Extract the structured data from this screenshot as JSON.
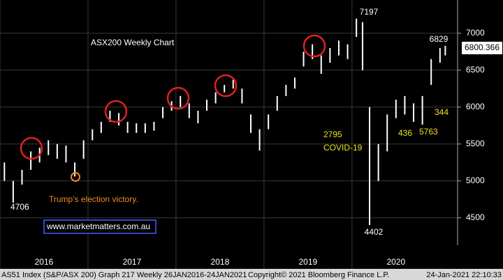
{
  "chart_data": {
    "type": "ohlc",
    "title": "ASX200 Weekly Chart",
    "title_color": "#80e0a0",
    "x": [
      2016.05,
      2016.15,
      2016.25,
      2016.35,
      2016.45,
      2016.55,
      2016.65,
      2016.75,
      2016.85,
      2016.95,
      2017.05,
      2017.15,
      2017.25,
      2017.35,
      2017.45,
      2017.55,
      2017.65,
      2017.75,
      2017.85,
      2017.95,
      2018.05,
      2018.15,
      2018.25,
      2018.35,
      2018.45,
      2018.55,
      2018.65,
      2018.75,
      2018.85,
      2018.95,
      2019.05,
      2019.15,
      2019.25,
      2019.35,
      2019.45,
      2019.55,
      2019.65,
      2019.75,
      2019.85,
      2019.95,
      2020.05,
      2020.12,
      2020.2,
      2020.3,
      2020.4,
      2020.5,
      2020.6,
      2020.7,
      2020.8,
      2020.9,
      2021.0,
      2021.06
    ],
    "high": [
      5250,
      5000,
      5150,
      5400,
      5450,
      5550,
      5500,
      5480,
      5250,
      5550,
      5700,
      5800,
      5950,
      5920,
      5800,
      5780,
      5780,
      5800,
      6000,
      6080,
      6150,
      6050,
      5950,
      6100,
      6200,
      6300,
      6370,
      6250,
      5900,
      5700,
      5900,
      6150,
      6300,
      6400,
      6750,
      6850,
      6700,
      6800,
      6900,
      6850,
      7197,
      7150,
      6000,
      5500,
      5900,
      6100,
      6150,
      6050,
      6150,
      6650,
      6800,
      6829
    ],
    "low": [
      5000,
      4706,
      4950,
      5150,
      5250,
      5350,
      5300,
      5250,
      5060,
      5300,
      5550,
      5650,
      5800,
      5750,
      5650,
      5650,
      5650,
      5680,
      5850,
      5950,
      6000,
      5850,
      5780,
      5950,
      6050,
      6200,
      6250,
      6050,
      5650,
      5410,
      5700,
      5950,
      6150,
      6250,
      6550,
      6650,
      6450,
      6600,
      6700,
      6650,
      6950,
      6500,
      4402,
      5000,
      5400,
      5850,
      5900,
      5800,
      5763,
      6300,
      6600,
      6700
    ],
    "color": "#ffffff",
    "xlim": [
      2016.0,
      2021.2
    ],
    "xticks": [
      {
        "value": 2016,
        "label": "2016"
      },
      {
        "value": 2017,
        "label": "2017"
      },
      {
        "value": 2018,
        "label": "2018"
      },
      {
        "value": 2019,
        "label": "2019"
      },
      {
        "value": 2020,
        "label": "2020"
      }
    ],
    "ylim": [
      4130,
      7450
    ],
    "yticks": [
      4500,
      5000,
      5500,
      6000,
      6500,
      7000
    ],
    "grid": true,
    "last_price": 6800.366,
    "annotations": [
      {
        "text": "7197",
        "color": "#ffffff"
      },
      {
        "text": "6829",
        "color": "#ffffff"
      },
      {
        "text": "344",
        "color": "#f0e020"
      },
      {
        "text": "2795",
        "color": "#f0e020"
      },
      {
        "text": "COVID-19",
        "color": "#f0e020"
      },
      {
        "text": "436",
        "color": "#f0e020"
      },
      {
        "text": "5763",
        "color": "#f0e020"
      },
      {
        "text": "4706",
        "color": "#ffffff"
      },
      {
        "text": "4402",
        "color": "#ffffff"
      },
      {
        "text": "Trump's election victory.",
        "color": "#f08a20"
      }
    ],
    "watermark": "www.marketmatters.com.au",
    "footer": [
      "AS51 Index (S&P/ASX 200) Graph 217  Weekly 26JAN2016-24JAN2021",
      "Copyright© 2021 Bloomberg Finance L.P.",
      "24-Jan-2021 22:10:33"
    ]
  }
}
